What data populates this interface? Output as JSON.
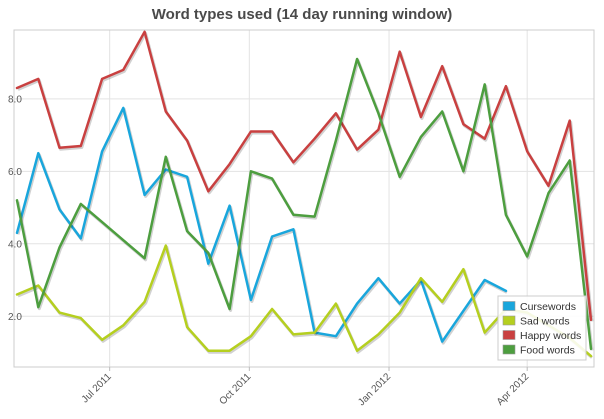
{
  "chart_data": {
    "type": "line",
    "title": "Word types used (14 day running window)",
    "xlabel": "",
    "ylabel": "",
    "x_ticks": [
      "Jul 2011",
      "Oct 2011",
      "Jan 2012",
      "Apr 2012"
    ],
    "y_ticks": [
      "2.0",
      "4.0",
      "6.0",
      "8.0"
    ],
    "ylim": [
      0.6,
      9.9
    ],
    "grid": true,
    "legend_position": "bottom-right",
    "series": [
      {
        "name": "Cursewords",
        "color": "#19a6dc",
        "points": [
          [
            "2011-05-01",
            4.3
          ],
          [
            "2011-05-15",
            6.5
          ],
          [
            "2011-05-29",
            4.95
          ],
          [
            "2011-06-12",
            4.15
          ],
          [
            "2011-06-26",
            6.55
          ],
          [
            "2011-07-10",
            7.75
          ],
          [
            "2011-07-24",
            5.35
          ],
          [
            "2011-08-07",
            6.05
          ],
          [
            "2011-08-21",
            5.85
          ],
          [
            "2011-09-04",
            3.45
          ],
          [
            "2011-09-18",
            5.05
          ],
          [
            "2011-10-02",
            2.45
          ],
          [
            "2011-10-16",
            4.2
          ],
          [
            "2011-10-30",
            4.4
          ],
          [
            "2011-11-13",
            1.55
          ],
          [
            "2011-11-27",
            1.45
          ],
          [
            "2011-12-11",
            2.35
          ],
          [
            "2011-12-25",
            3.05
          ],
          [
            "2012-01-08",
            2.35
          ],
          [
            "2012-01-22",
            3.0
          ],
          [
            "2012-02-05",
            1.3
          ],
          [
            "2012-02-19",
            2.15
          ],
          [
            "2012-03-04",
            3.0
          ],
          [
            "2012-03-18",
            2.7
          ]
        ]
      },
      {
        "name": "Sad words",
        "color": "#b5cf1f",
        "points": [
          [
            "2011-05-01",
            2.6
          ],
          [
            "2011-05-15",
            2.85
          ],
          [
            "2011-05-29",
            2.1
          ],
          [
            "2011-06-12",
            1.95
          ],
          [
            "2011-06-26",
            1.35
          ],
          [
            "2011-07-10",
            1.75
          ],
          [
            "2011-07-24",
            2.4
          ],
          [
            "2011-08-07",
            3.95
          ],
          [
            "2011-08-21",
            1.7
          ],
          [
            "2011-09-04",
            1.05
          ],
          [
            "2011-09-18",
            1.05
          ],
          [
            "2011-10-02",
            1.45
          ],
          [
            "2011-10-16",
            2.2
          ],
          [
            "2011-10-30",
            1.5
          ],
          [
            "2011-11-13",
            1.55
          ],
          [
            "2011-11-27",
            2.35
          ],
          [
            "2011-12-11",
            1.05
          ],
          [
            "2011-12-25",
            1.5
          ],
          [
            "2012-01-08",
            2.1
          ],
          [
            "2012-01-22",
            3.05
          ],
          [
            "2012-02-05",
            2.4
          ],
          [
            "2012-02-19",
            3.3
          ],
          [
            "2012-03-04",
            1.55
          ],
          [
            "2012-03-18",
            2.2
          ],
          [
            "2012-04-01",
            2.1
          ],
          [
            "2012-04-15",
            1.75
          ],
          [
            "2012-04-29",
            1.4
          ],
          [
            "2012-05-13",
            0.9
          ]
        ]
      },
      {
        "name": "Happy words",
        "color": "#c94040",
        "points": [
          [
            "2011-05-01",
            8.3
          ],
          [
            "2011-05-15",
            8.55
          ],
          [
            "2011-05-29",
            6.65
          ],
          [
            "2011-06-12",
            6.7
          ],
          [
            "2011-06-26",
            8.55
          ],
          [
            "2011-07-10",
            8.8
          ],
          [
            "2011-07-24",
            9.85
          ],
          [
            "2011-08-07",
            7.65
          ],
          [
            "2011-08-21",
            6.85
          ],
          [
            "2011-09-04",
            5.45
          ],
          [
            "2011-09-18",
            6.2
          ],
          [
            "2011-10-02",
            7.1
          ],
          [
            "2011-10-16",
            7.1
          ],
          [
            "2011-10-30",
            6.25
          ],
          [
            "2011-11-13",
            6.9
          ],
          [
            "2011-11-27",
            7.6
          ],
          [
            "2011-12-11",
            6.6
          ],
          [
            "2011-12-25",
            7.15
          ],
          [
            "2012-01-08",
            9.3
          ],
          [
            "2012-01-22",
            7.5
          ],
          [
            "2012-02-05",
            8.9
          ],
          [
            "2012-02-19",
            7.3
          ],
          [
            "2012-03-04",
            6.9
          ],
          [
            "2012-03-18",
            8.35
          ],
          [
            "2012-04-01",
            6.55
          ],
          [
            "2012-04-15",
            5.6
          ],
          [
            "2012-04-29",
            7.4
          ],
          [
            "2012-05-13",
            1.9
          ]
        ]
      },
      {
        "name": "Food words",
        "color": "#4d9e3f",
        "points": [
          [
            "2011-05-01",
            5.2
          ],
          [
            "2011-05-15",
            2.25
          ],
          [
            "2011-05-29",
            3.9
          ],
          [
            "2011-06-12",
            5.1
          ],
          [
            "2011-06-26",
            4.6
          ],
          [
            "2011-07-10",
            4.1
          ],
          [
            "2011-07-24",
            3.6
          ],
          [
            "2011-08-07",
            6.4
          ],
          [
            "2011-08-21",
            4.35
          ],
          [
            "2011-09-04",
            3.75
          ],
          [
            "2011-09-18",
            2.2
          ],
          [
            "2011-10-02",
            6.0
          ],
          [
            "2011-10-16",
            5.8
          ],
          [
            "2011-10-30",
            4.8
          ],
          [
            "2011-11-13",
            4.75
          ],
          [
            "2011-11-27",
            6.85
          ],
          [
            "2011-12-11",
            9.1
          ],
          [
            "2011-12-25",
            7.6
          ],
          [
            "2012-01-08",
            5.85
          ],
          [
            "2012-01-22",
            6.95
          ],
          [
            "2012-02-05",
            7.65
          ],
          [
            "2012-02-19",
            6.0
          ],
          [
            "2012-03-04",
            8.4
          ],
          [
            "2012-03-18",
            4.8
          ],
          [
            "2012-04-01",
            3.65
          ],
          [
            "2012-04-15",
            5.4
          ],
          [
            "2012-04-29",
            6.3
          ],
          [
            "2012-05-13",
            1.1
          ]
        ]
      }
    ]
  }
}
